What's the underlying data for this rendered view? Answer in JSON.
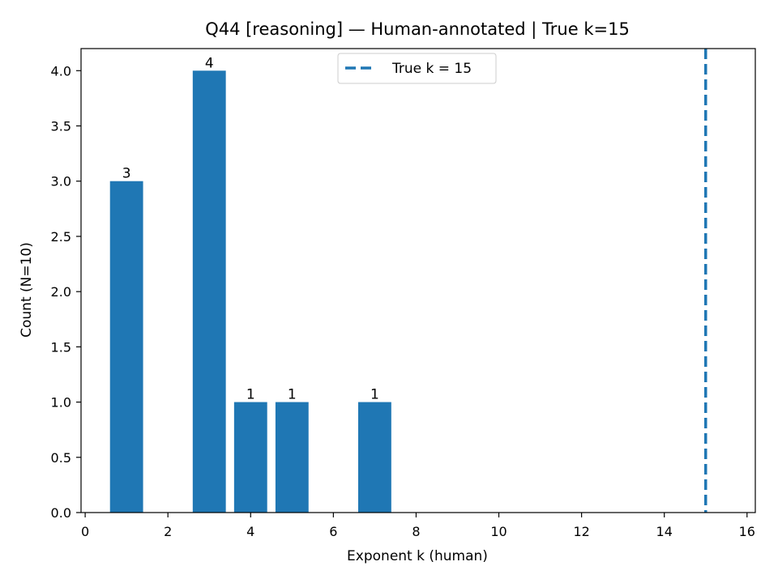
{
  "chart_data": {
    "type": "bar",
    "title": "Q44 [reasoning] — Human-annotated | True k=15",
    "xlabel": "Exponent k (human)",
    "ylabel": "Count (N=10)",
    "x": [
      1,
      3,
      4,
      5,
      7
    ],
    "values": [
      3,
      4,
      1,
      1,
      1
    ],
    "data_labels": [
      "3",
      "4",
      "1",
      "1",
      "1"
    ],
    "bar_width": 0.8,
    "xlim": [
      -0.1,
      16.2
    ],
    "ylim": [
      0,
      4.2
    ],
    "xticks": [
      0,
      2,
      4,
      6,
      8,
      10,
      12,
      14,
      16
    ],
    "xtick_labels": [
      "0",
      "2",
      "4",
      "6",
      "8",
      "10",
      "12",
      "14",
      "16"
    ],
    "yticks": [
      0,
      0.5,
      1.0,
      1.5,
      2.0,
      2.5,
      3.0,
      3.5,
      4.0
    ],
    "ytick_labels": [
      "0.0",
      "0.5",
      "1.0",
      "1.5",
      "2.0",
      "2.5",
      "3.0",
      "3.5",
      "4.0"
    ],
    "reference_line": {
      "x": 15,
      "style": "dashed",
      "label": "True k = 15"
    },
    "legend": {
      "entries": [
        "True k = 15"
      ],
      "placement": "top-center"
    },
    "grid": false,
    "colors": {
      "bar": "#1f77b4",
      "reference_line": "#1f77b4"
    }
  }
}
